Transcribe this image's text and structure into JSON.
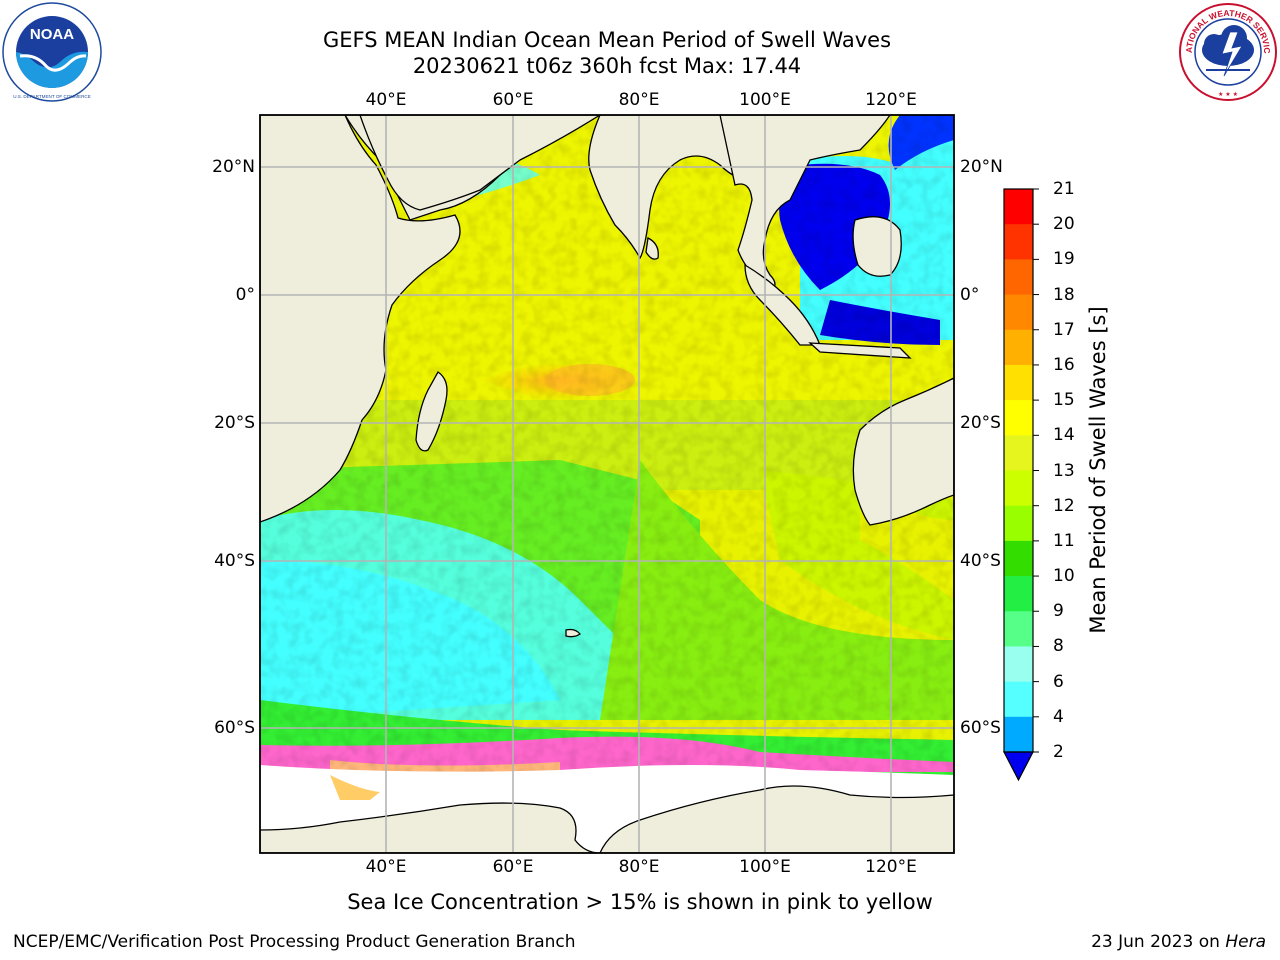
{
  "title": {
    "line1": "GEFS MEAN Indian Ocean Mean Period of Swell Waves",
    "line2": "20230621 t06z 360h fcst   Max: 17.44"
  },
  "map": {
    "lon_ticks": [
      "40°E",
      "60°E",
      "80°E",
      "100°E",
      "120°E"
    ],
    "lat_ticks": [
      "20°N",
      "0°",
      "20°S",
      "40°S",
      "60°S"
    ],
    "colors": {
      "land": "#efeedc",
      "grid": "#b4b4b4",
      "ice": "#ffffff"
    }
  },
  "colorbar": {
    "label": "Mean Period of Swell Waves [s]",
    "ticks": [
      "21",
      "20",
      "19",
      "18",
      "17",
      "16",
      "15",
      "14",
      "13",
      "12",
      "11",
      "10",
      "9",
      "8",
      "6",
      "4",
      "2"
    ],
    "colors": [
      "#ff0000",
      "#ff2a00",
      "#ff5500",
      "#ff7f00",
      "#ffaa00",
      "#ffd400",
      "#ffff00",
      "#e6f51e",
      "#ccff00",
      "#99ff00",
      "#55ee22",
      "#00dd00",
      "#22ee44",
      "#55ff88",
      "#99ffee",
      "#55ffff",
      "#00ffff",
      "#00ccff",
      "#0077ff",
      "#0000ee"
    ]
  },
  "footnote": "Sea Ice Concentration > 15% is shown in pink to yellow",
  "credit": "NCEP/EMC/Verification Post Processing Product Generation Branch",
  "run_date": {
    "date": "23 Jun 2023 on",
    "machine": "Hera"
  },
  "logos": {
    "noaa": {
      "name": "noaa-logo",
      "text": "NOAA",
      "ring_text": "NATIONAL OCEANIC AND ATMOSPHERIC ADMINISTRATION · U.S. DEPARTMENT OF COMMERCE"
    },
    "nws": {
      "name": "nws-logo",
      "ring_text": "NATIONAL WEATHER SERVICE"
    }
  }
}
